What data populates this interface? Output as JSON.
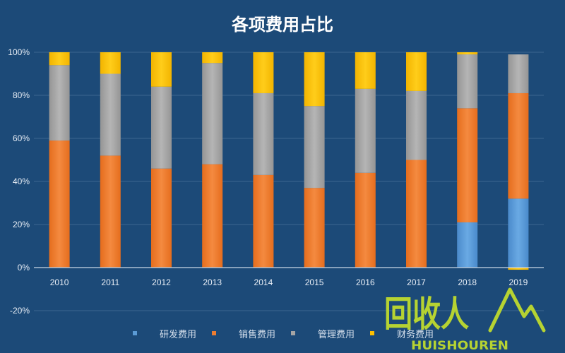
{
  "chart_data": {
    "type": "bar",
    "stacked": true,
    "title": "各项费用占比",
    "categories": [
      "2010",
      "2011",
      "2012",
      "2013",
      "2014",
      "2015",
      "2016",
      "2017",
      "2018",
      "2019"
    ],
    "ylim": [
      -20,
      100
    ],
    "yticks": [
      "-20%",
      "0%",
      "20%",
      "40%",
      "60%",
      "80%",
      "100%"
    ],
    "grid": true,
    "legend_position": "bottom",
    "series": [
      {
        "name": "研发费用",
        "color": "#5b9bd5",
        "values": [
          0,
          0,
          0,
          0,
          0,
          0,
          0,
          0,
          21,
          32
        ]
      },
      {
        "name": "销售费用",
        "color": "#ed7d31",
        "values": [
          59,
          52,
          46,
          48,
          43,
          37,
          44,
          50,
          53,
          49
        ]
      },
      {
        "name": "管理费用",
        "color": "#a5a5a5",
        "values": [
          35,
          38,
          38,
          47,
          38,
          38,
          39,
          32,
          25,
          18
        ]
      },
      {
        "name": "财务费用",
        "color": "#ffc000",
        "values": [
          6,
          10,
          16,
          5,
          19,
          25,
          17,
          18,
          1,
          -1
        ]
      }
    ]
  },
  "watermark": {
    "text_cn": "回收人",
    "text_en": "HUISHOUREN",
    "color": "#b6d332"
  }
}
